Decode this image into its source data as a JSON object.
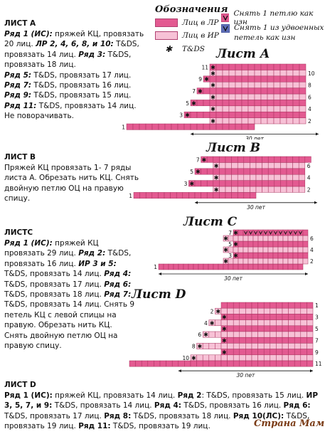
{
  "legend": {
    "title": "Обозначения",
    "items": [
      {
        "label": "Лиц в ЛР",
        "color": "#e35a91"
      },
      {
        "label": "Лиц в ИР",
        "color": "#f7c1d6"
      },
      {
        "label": "T&DS",
        "icon": "star-icon"
      },
      {
        "label": "Снять 1 петлю как изн",
        "icon": "v-pink-icon"
      },
      {
        "label": "Снять 1 из удвоенных петель как изн",
        "icon": "v-blue-icon"
      }
    ]
  },
  "sections": {
    "a": {
      "heading": "ЛИСТ А",
      "chart_title": "Лист А"
    },
    "b": {
      "heading": "ЛИСТ В",
      "chart_title": "Лист В"
    },
    "c": {
      "heading": "ЛИСТС",
      "chart_title": "Лист С"
    },
    "d": {
      "heading": "ЛИСТ D",
      "chart_title": "Лист D"
    }
  },
  "texts": {
    "a": [
      [
        {
          "t": "Ряд 1 (ИС):",
          "b": true
        },
        {
          "t": " пряжей КЦ, провязать 20 лиц. "
        },
        {
          "t": "ЛР 2, 4, 6, 8, и 10:",
          "b": true
        },
        {
          "t": " T&DS, провязать 14 лиц. "
        },
        {
          "t": "Ряд 3:",
          "b": true
        },
        {
          "t": " T&DS, провязать 18 лиц."
        }
      ],
      [
        {
          "t": "Ряд 5:",
          "b": true
        },
        {
          "t": " T&DS, провязать 17 лиц. "
        },
        {
          "t": "Ряд 7:",
          "b": true
        },
        {
          "t": " T&DS, провязать 16 лиц. "
        },
        {
          "t": "Ряд 9:",
          "b": true
        },
        {
          "t": " T&DS, провязать 15 лиц. "
        },
        {
          "t": "Ряд 11:",
          "b": true
        },
        {
          "t": " T&DS, провязать 14 лиц. Не поворачивать."
        }
      ]
    ],
    "b": [
      [
        {
          "t": "Пряжей КЦ провязать 1- 7 ряды листа А. Обрезать нить КЦ. Снять двойную петлю ОЦ на правую спицу."
        }
      ]
    ],
    "c": [
      [
        {
          "t": "Ряд 1 (ИС):",
          "b": true
        },
        {
          "t": " пряжей КЦ провязать 29 лиц. "
        },
        {
          "t": "Ряд 2:",
          "b": true
        },
        {
          "t": " T&DS, провязать 16 лиц. "
        },
        {
          "t": "ИР 3 и 5:",
          "b": true
        },
        {
          "t": " T&DS, провязать 14 лиц. "
        },
        {
          "t": "Ряд 4:",
          "b": true
        },
        {
          "t": " T&DS, провязать 17 лиц. "
        },
        {
          "t": "Ряд 6:",
          "b": true
        },
        {
          "t": " T&DS, провязать 18 лиц. "
        },
        {
          "t": "Ряд 7:",
          "b": true
        },
        {
          "t": " T&DS, провязать 14 лиц. Снять 9 петель КЦ с левой спицы на правую. Обрезать нить КЦ. Снять двойную петлю ОЦ на правую спицу."
        }
      ]
    ],
    "d": [
      [
        {
          "t": "Ряд 1 (ИС):",
          "b": true
        },
        {
          "t": " пряжей КЦ, провязать 14 лиц. "
        },
        {
          "t": "Ряд 2",
          "b": true
        },
        {
          "t": ": T&DS, провязать 15 лиц. "
        },
        {
          "t": "ИР 3, 5, 7, и 9:",
          "b": true
        },
        {
          "t": " T&DS, провязать 14 лиц. "
        },
        {
          "t": "Ряд 4:",
          "b": true
        },
        {
          "t": " T&DS, провязать 16 лиц. "
        },
        {
          "t": "Ряд 6:",
          "b": true
        },
        {
          "t": " T&DS, провязать 17 лиц. "
        },
        {
          "t": "Ряд 8:",
          "b": true
        },
        {
          "t": " T&DS, провязать 18 лиц. "
        },
        {
          "t": "Ряд 10(ЛС):",
          "b": true
        },
        {
          "t": " T&DS, провязать 19 лиц. "
        },
        {
          "t": "Ряд 11:",
          "b": true
        },
        {
          "t": " T&DS, провязать 19 лиц."
        }
      ]
    ]
  },
  "charts": {
    "a": {
      "stitch_label": "30 пет",
      "row_labels": [
        "1",
        "2",
        "3",
        "4",
        "5",
        "6",
        "7",
        "8",
        "9",
        "10",
        "11"
      ],
      "rows": [
        {
          "n": 1,
          "start": 1,
          "len": 20
        },
        {
          "n": 2,
          "start": 14,
          "len": 15
        },
        {
          "n": 3,
          "start": 10,
          "len": 19
        },
        {
          "n": 4,
          "start": 14,
          "len": 15
        },
        {
          "n": 5,
          "start": 11,
          "len": 18
        },
        {
          "n": 6,
          "start": 14,
          "len": 15
        },
        {
          "n": 7,
          "start": 12,
          "len": 17
        },
        {
          "n": 8,
          "start": 14,
          "len": 15
        },
        {
          "n": 9,
          "start": 13,
          "len": 16
        },
        {
          "n": 10,
          "start": 14,
          "len": 15
        },
        {
          "n": 11,
          "start": 14,
          "len": 15
        }
      ]
    },
    "b": {
      "stitch_label": "30 пет",
      "row_labels": [
        "1",
        "2",
        "3",
        "4",
        "5",
        "6",
        "7"
      ],
      "rows": [
        {
          "n": 1,
          "start": 1,
          "len": 20
        },
        {
          "n": 2,
          "start": 14,
          "len": 15
        },
        {
          "n": 3,
          "start": 10,
          "len": 19
        },
        {
          "n": 4,
          "start": 14,
          "len": 15
        },
        {
          "n": 5,
          "start": 11,
          "len": 18
        },
        {
          "n": 6,
          "start": 14,
          "len": 15
        },
        {
          "n": 7,
          "start": 12,
          "len": 18
        }
      ]
    },
    "c": {
      "stitch_label": "30 пет",
      "row_labels": [
        "1",
        "2",
        "3",
        "4",
        "5",
        "6",
        "7"
      ],
      "rows": [
        {
          "n": 1,
          "start": 1,
          "len": 29
        },
        {
          "n": 2,
          "start": 14,
          "len": 17
        },
        {
          "n": 3,
          "start": 16,
          "len": 15
        },
        {
          "n": 4,
          "start": 14,
          "len": 18
        },
        {
          "n": 5,
          "start": 16,
          "len": 15
        },
        {
          "n": 6,
          "start": 14,
          "len": 19
        },
        {
          "n": 7,
          "start": 16,
          "len": 24
        }
      ]
    },
    "d": {
      "stitch_label": "30 пет",
      "row_labels": [
        "1",
        "2",
        "3",
        "4",
        "5",
        "6",
        "7",
        "8",
        "9",
        "10",
        "11"
      ],
      "rows": [
        {
          "n": 1,
          "start": 16,
          "len": 15
        },
        {
          "n": 2,
          "start": 15,
          "len": 16
        },
        {
          "n": 3,
          "start": 16,
          "len": 15
        },
        {
          "n": 4,
          "start": 14,
          "len": 17
        },
        {
          "n": 5,
          "start": 16,
          "len": 15
        },
        {
          "n": 6,
          "start": 13,
          "len": 18
        },
        {
          "n": 7,
          "start": 16,
          "len": 15
        },
        {
          "n": 8,
          "start": 12,
          "len": 19
        },
        {
          "n": 9,
          "start": 16,
          "len": 15
        },
        {
          "n": 10,
          "start": 11,
          "len": 20
        },
        {
          "n": 11,
          "start": 1,
          "len": 30
        }
      ]
    }
  },
  "colors": {
    "dark": "#e35a91",
    "light": "#f7c1d6",
    "grid": "#a8335f",
    "blue": "#5f6fb8"
  },
  "watermark": "Страна Мам"
}
